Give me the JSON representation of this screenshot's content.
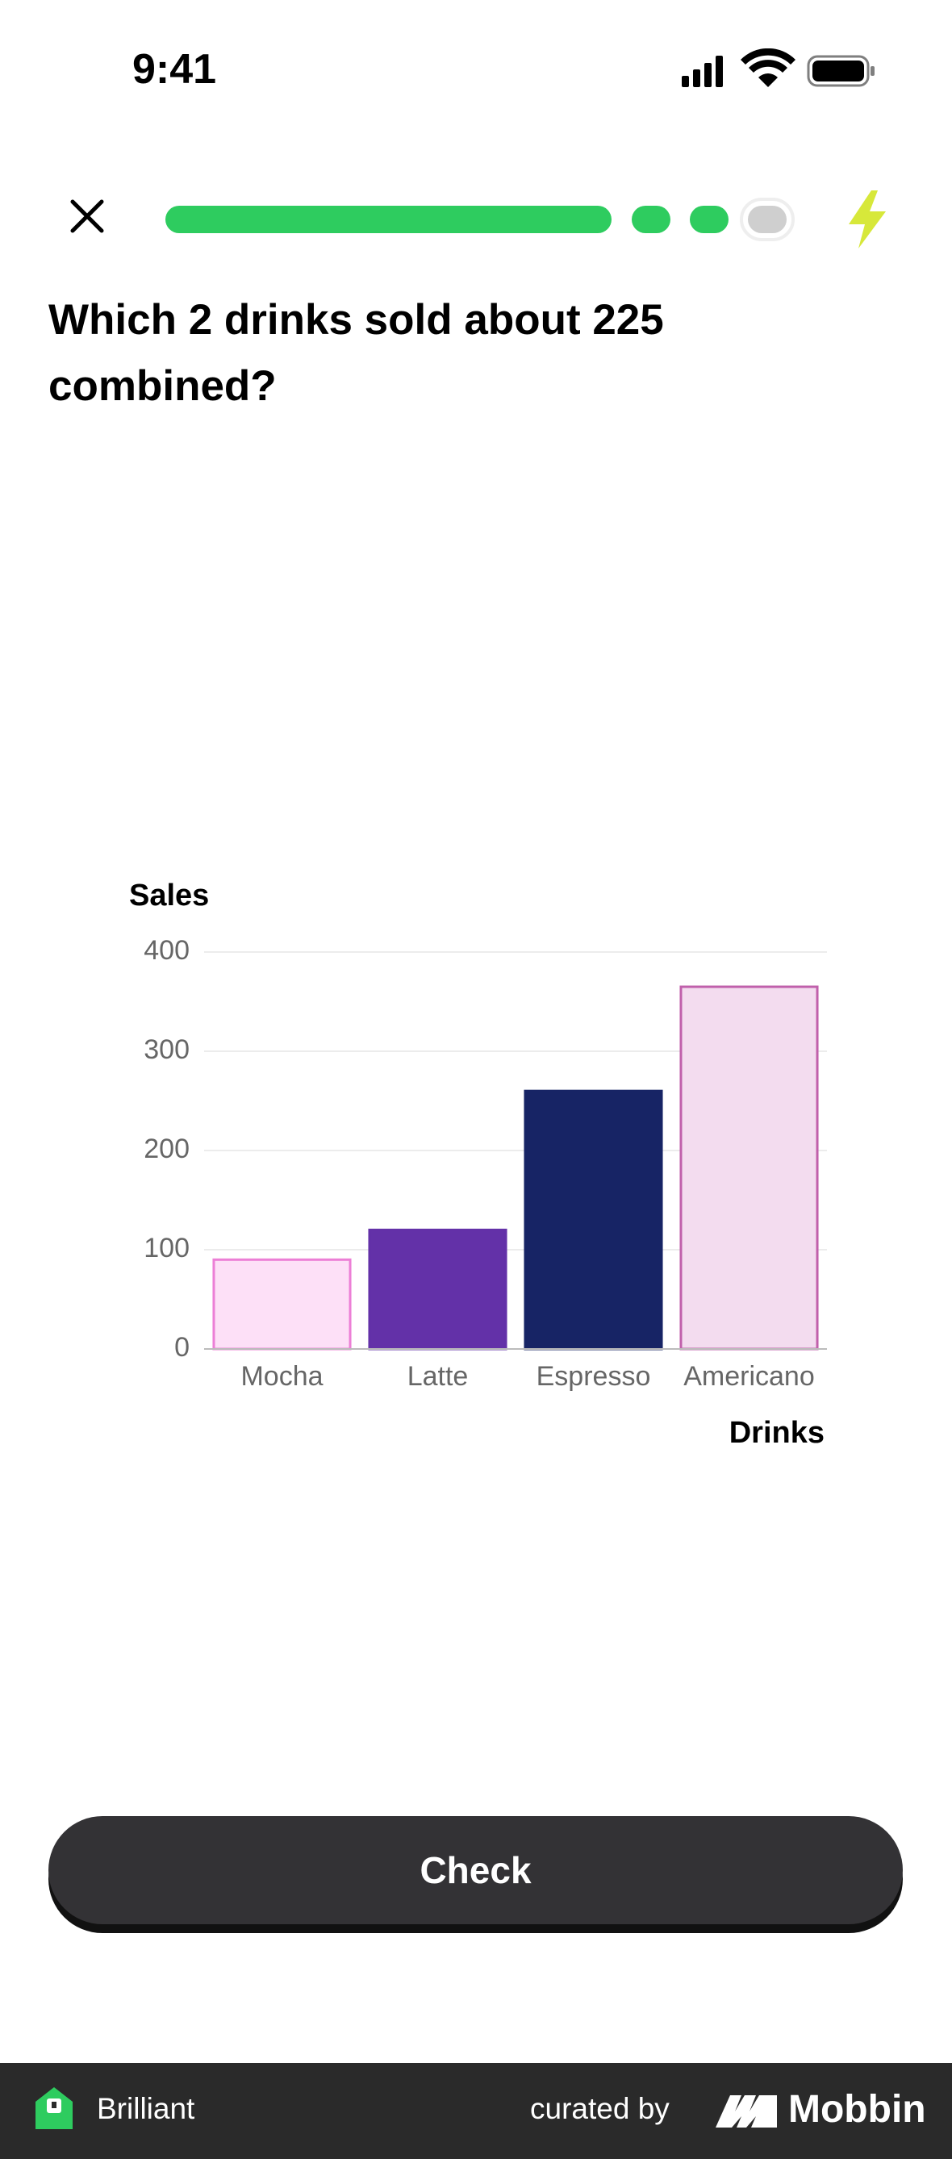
{
  "status": {
    "time": "9:41"
  },
  "question": "Which 2 drinks sold about 225 combined?",
  "chart_data": {
    "type": "bar",
    "y_label": "Sales",
    "x_label": "Drinks",
    "categories": [
      "Mocha",
      "Latte",
      "Espresso",
      "Americano"
    ],
    "values": [
      90,
      120,
      260,
      365
    ],
    "colors": [
      "#fde0f7",
      "#6331a8",
      "#172465",
      "#f3dcef"
    ],
    "stroke_colors": [
      "#ec7fd6",
      "#6331a8",
      "#172465",
      "#c060ab"
    ],
    "ylim": [
      0,
      400
    ],
    "yticks": [
      0,
      100,
      200,
      300,
      400
    ],
    "grid": true
  },
  "button": {
    "label": "Check"
  },
  "footer": {
    "app": "Brilliant",
    "curated": "curated by",
    "brand": "Mobbin"
  }
}
